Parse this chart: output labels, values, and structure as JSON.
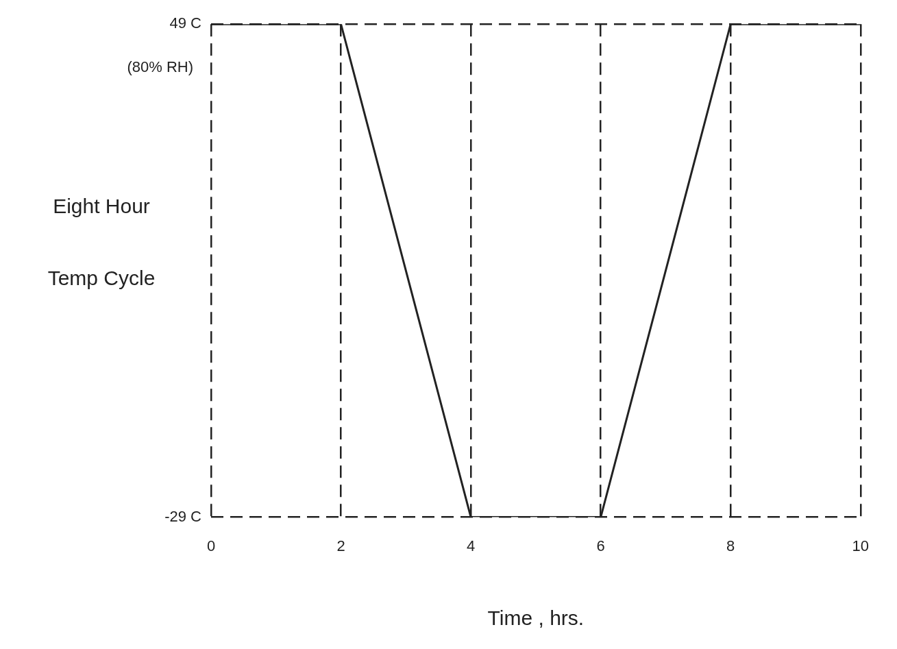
{
  "chart_data": {
    "type": "line",
    "xlabel": "Time , hrs.",
    "ylabel": "Eight Hour Temp Cycle",
    "annotations": [
      "(80% RH)"
    ],
    "x": [
      0,
      2,
      4,
      6,
      8,
      10
    ],
    "series": [
      {
        "color": "#222222",
        "values": [
          49,
          49,
          -29,
          -29,
          49,
          49
        ]
      }
    ],
    "xlim": [
      0,
      10
    ],
    "xticks": [
      0,
      2,
      4,
      6,
      8,
      10
    ],
    "ylim": [
      -29,
      49
    ],
    "yticks": [
      {
        "value": -29,
        "label": "-29 C"
      },
      {
        "value": 49,
        "label": "49 C"
      }
    ],
    "grid": true,
    "line_style": "solid",
    "marker": "none",
    "legend": false
  }
}
